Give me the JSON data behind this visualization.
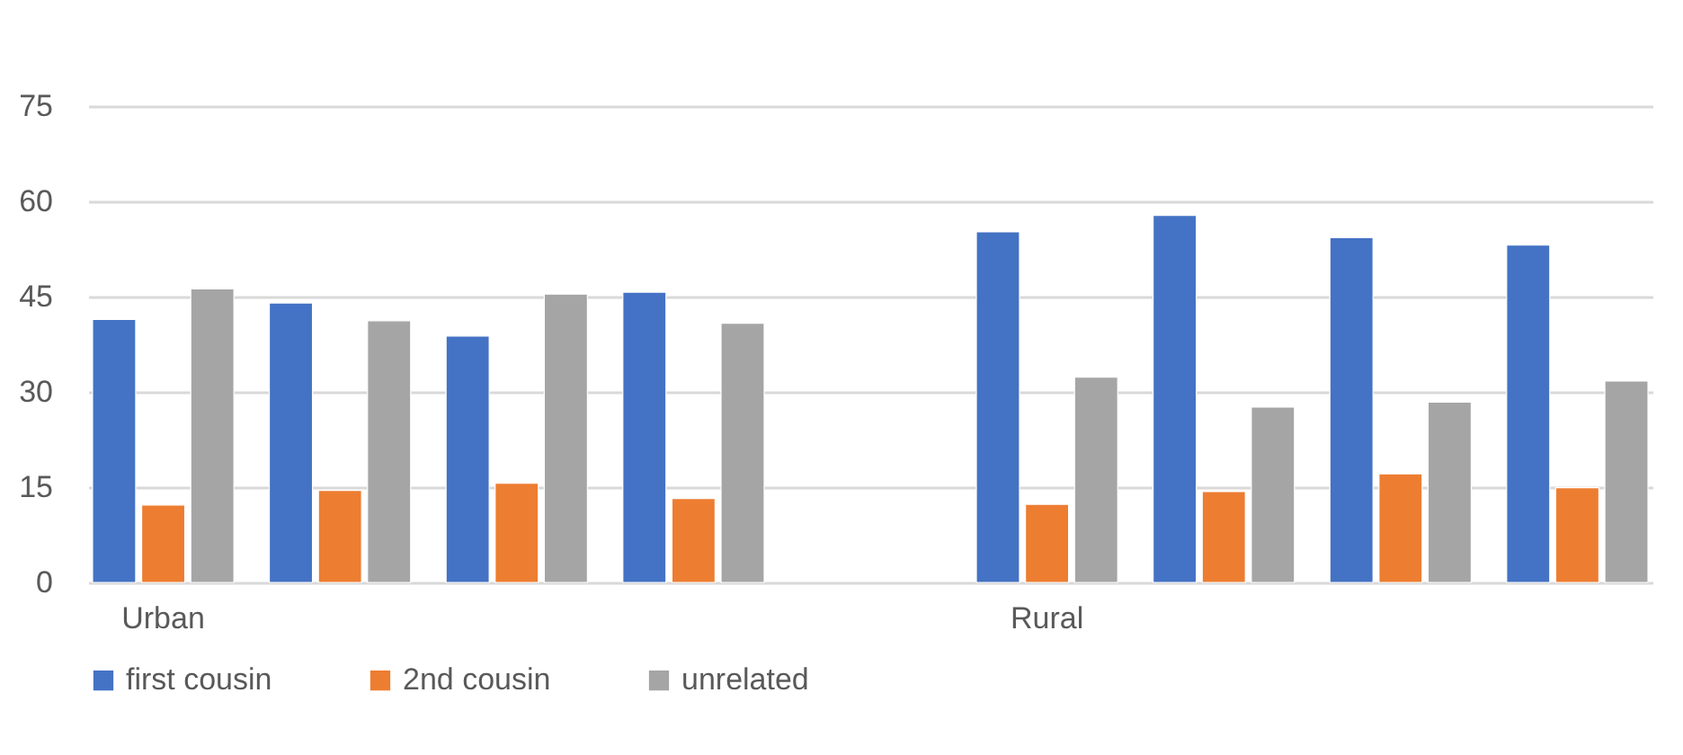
{
  "chart_data": {
    "type": "bar",
    "categories": [
      "Urban",
      null,
      null,
      null,
      null,
      "Rural",
      null,
      null,
      null
    ],
    "series": [
      {
        "name": "first cousin",
        "color": "#4472c4",
        "values": [
          41.4,
          44.0,
          38.8,
          45.7,
          null,
          55.2,
          57.8,
          54.3,
          53.1
        ]
      },
      {
        "name": "2nd cousin",
        "color": "#ed7d31",
        "values": [
          12.2,
          14.5,
          15.6,
          13.2,
          null,
          12.3,
          14.3,
          17.1,
          14.9
        ]
      },
      {
        "name": "unrelated",
        "color": "#a5a5a5",
        "values": [
          46.2,
          41.2,
          45.4,
          40.8,
          null,
          32.3,
          27.6,
          28.4,
          31.7
        ]
      }
    ],
    "ylim": [
      0,
      75
    ],
    "yticks": [
      0,
      15,
      30,
      45,
      60,
      75
    ],
    "grid": "y",
    "legend": "bottom"
  }
}
